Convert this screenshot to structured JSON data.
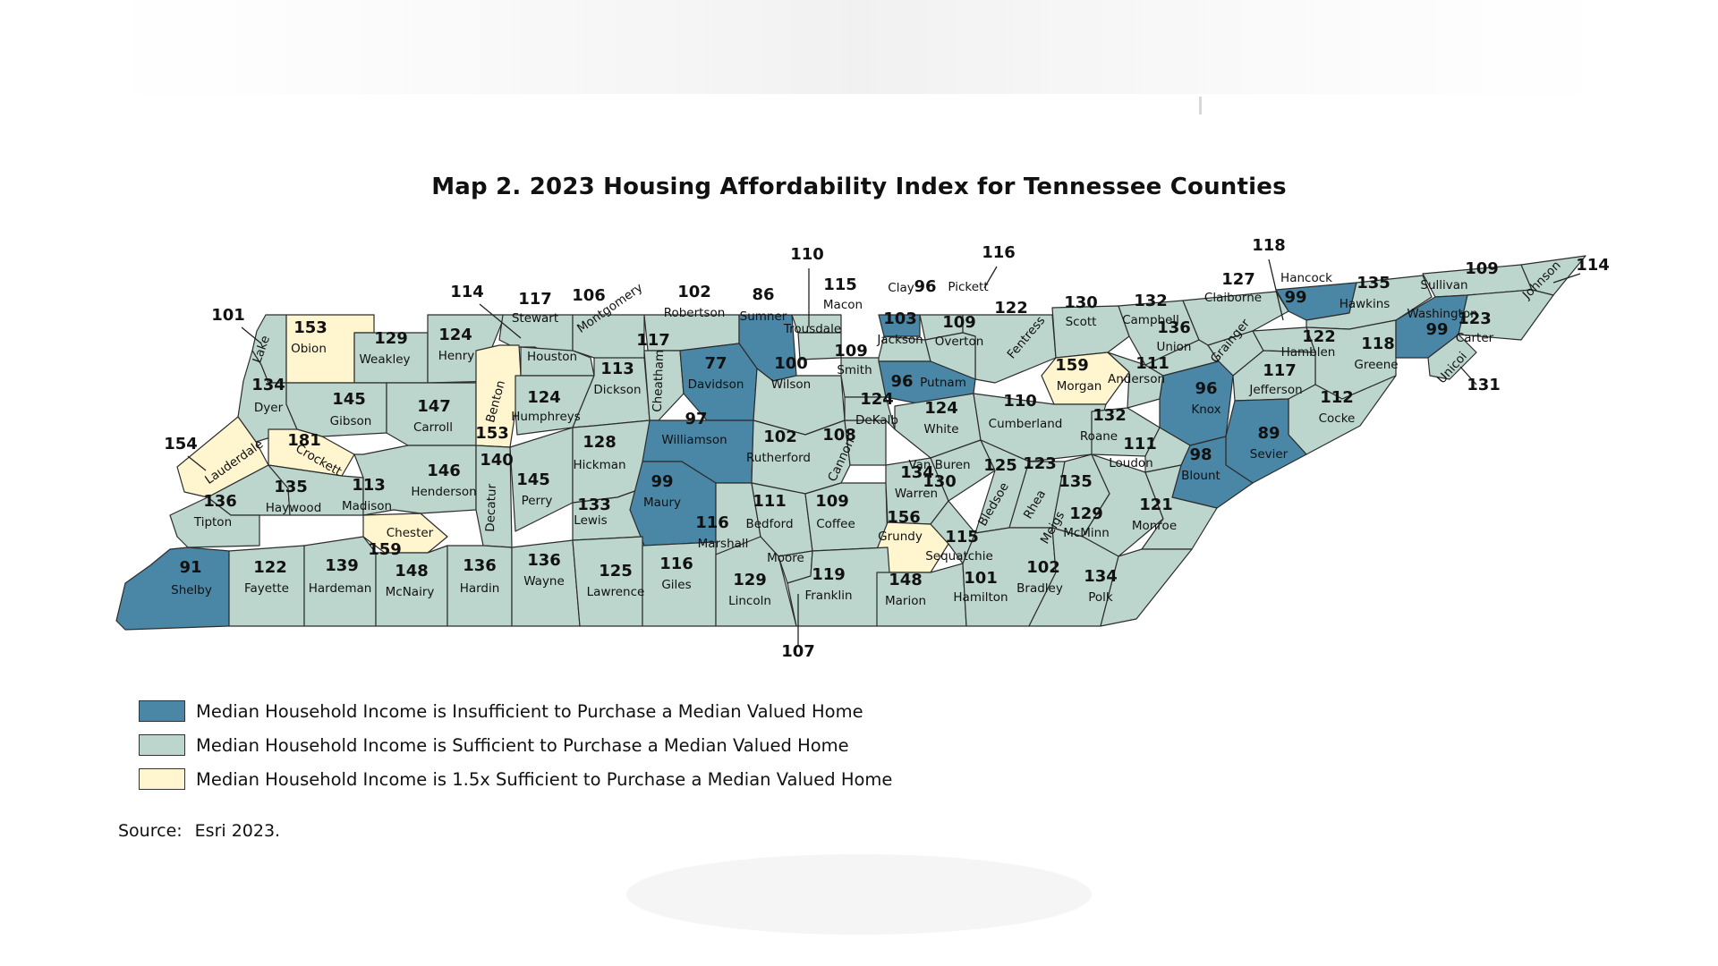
{
  "title": "Map 2.  2023 Housing Affordability Index for Tennessee Counties",
  "colors": {
    "insufficient": "#4a86a6",
    "sufficient": "#bcd6ce",
    "sufficient_15x": "#fff5cf",
    "border": "#2c2c2c"
  },
  "legend": [
    {
      "category": "insufficient",
      "label": "Median Household Income is Insufficient to Purchase a Median Valued Home"
    },
    {
      "category": "sufficient",
      "label": "Median Household Income is Sufficient to Purchase a Median Valued Home"
    },
    {
      "category": "sufficient_15x",
      "label": "Median Household Income is 1.5x Sufficient to Purchase a Median Valued Home"
    }
  ],
  "source": {
    "label": "Source:",
    "text": "Esri 2023."
  },
  "counties": [
    {
      "name": "Lake",
      "value": 101,
      "category": "sufficient"
    },
    {
      "name": "Obion",
      "value": 153,
      "category": "sufficient_15x"
    },
    {
      "name": "Weakley",
      "value": 129,
      "category": "sufficient"
    },
    {
      "name": "Henry",
      "value": 124,
      "category": "sufficient"
    },
    {
      "name": "Stewart",
      "value": 117,
      "category": "sufficient"
    },
    {
      "name": "Montgomery",
      "value": 106,
      "category": "sufficient"
    },
    {
      "name": "Robertson",
      "value": 102,
      "category": "sufficient"
    },
    {
      "name": "Sumner",
      "value": 86,
      "category": "insufficient"
    },
    {
      "name": "Macon",
      "value": 115,
      "category": "sufficient"
    },
    {
      "name": "Trousdale",
      "value": 110,
      "category": "sufficient"
    },
    {
      "name": "Clay",
      "value": 96,
      "category": "insufficient"
    },
    {
      "name": "Pickett",
      "value": 116,
      "category": "sufficient"
    },
    {
      "name": "Fentress",
      "value": 122,
      "category": "sufficient"
    },
    {
      "name": "Scott",
      "value": 130,
      "category": "sufficient"
    },
    {
      "name": "Campbell",
      "value": 132,
      "category": "sufficient"
    },
    {
      "name": "Claiborne",
      "value": 127,
      "category": "sufficient"
    },
    {
      "name": "Hancock",
      "value": 99,
      "category": "insufficient"
    },
    {
      "name": "Hawkins",
      "value": 135,
      "category": "sufficient"
    },
    {
      "name": "Sullivan",
      "value": 109,
      "category": "sufficient"
    },
    {
      "name": "Johnson",
      "value": 114,
      "category": "sufficient"
    },
    {
      "name": "Dyer",
      "value": 134,
      "category": "sufficient"
    },
    {
      "name": "Gibson",
      "value": 145,
      "category": "sufficient"
    },
    {
      "name": "Carroll",
      "value": 147,
      "category": "sufficient"
    },
    {
      "name": "Benton",
      "value": 153,
      "category": "sufficient_15x"
    },
    {
      "name": "Houston",
      "value": 114,
      "category": "sufficient"
    },
    {
      "name": "Humphreys",
      "value": 124,
      "category": "sufficient"
    },
    {
      "name": "Dickson",
      "value": 113,
      "category": "sufficient"
    },
    {
      "name": "Cheatham",
      "value": 117,
      "category": "sufficient"
    },
    {
      "name": "Davidson",
      "value": 77,
      "category": "insufficient"
    },
    {
      "name": "Wilson",
      "value": 100,
      "category": "sufficient"
    },
    {
      "name": "Smith",
      "value": 109,
      "category": "sufficient"
    },
    {
      "name": "Jackson",
      "value": 103,
      "category": "sufficient"
    },
    {
      "name": "Overton",
      "value": 109,
      "category": "sufficient"
    },
    {
      "name": "Putnam",
      "value": 96,
      "category": "insufficient"
    },
    {
      "name": "Morgan",
      "value": 159,
      "category": "sufficient_15x"
    },
    {
      "name": "Anderson",
      "value": 111,
      "category": "sufficient"
    },
    {
      "name": "Union",
      "value": 136,
      "category": "sufficient"
    },
    {
      "name": "Grainger",
      "value": 118,
      "category": "sufficient"
    },
    {
      "name": "Hamblen",
      "value": 122,
      "category": "sufficient"
    },
    {
      "name": "Greene",
      "value": 118,
      "category": "sufficient"
    },
    {
      "name": "Washington",
      "value": 99,
      "category": "insufficient"
    },
    {
      "name": "Carter",
      "value": 123,
      "category": "sufficient"
    },
    {
      "name": "Unicoi",
      "value": 131,
      "category": "sufficient"
    },
    {
      "name": "Lauderdale",
      "value": 154,
      "category": "sufficient_15x"
    },
    {
      "name": "Crockett",
      "value": 181,
      "category": "sufficient_15x"
    },
    {
      "name": "Haywood",
      "value": 135,
      "category": "sufficient"
    },
    {
      "name": "Madison",
      "value": 113,
      "category": "sufficient"
    },
    {
      "name": "Henderson",
      "value": 146,
      "category": "sufficient"
    },
    {
      "name": "Decatur",
      "value": 140,
      "category": "sufficient"
    },
    {
      "name": "Perry",
      "value": 145,
      "category": "sufficient"
    },
    {
      "name": "Hickman",
      "value": 128,
      "category": "sufficient"
    },
    {
      "name": "Williamson",
      "value": 97,
      "category": "insufficient"
    },
    {
      "name": "Rutherford",
      "value": 102,
      "category": "sufficient"
    },
    {
      "name": "Cannon",
      "value": 108,
      "category": "sufficient"
    },
    {
      "name": "DeKalb",
      "value": 124,
      "category": "sufficient"
    },
    {
      "name": "White",
      "value": 124,
      "category": "sufficient"
    },
    {
      "name": "Cumberland",
      "value": 110,
      "category": "sufficient"
    },
    {
      "name": "Roane",
      "value": 132,
      "category": "sufficient"
    },
    {
      "name": "Knox",
      "value": 96,
      "category": "insufficient"
    },
    {
      "name": "Jefferson",
      "value": 117,
      "category": "sufficient"
    },
    {
      "name": "Cocke",
      "value": 112,
      "category": "sufficient"
    },
    {
      "name": "Sevier",
      "value": 89,
      "category": "insufficient"
    },
    {
      "name": "Blount",
      "value": 98,
      "category": "insufficient"
    },
    {
      "name": "Loudon",
      "value": 111,
      "category": "sufficient"
    },
    {
      "name": "Tipton",
      "value": 136,
      "category": "sufficient"
    },
    {
      "name": "Chester",
      "value": 159,
      "category": "sufficient_15x"
    },
    {
      "name": "Lewis",
      "value": 133,
      "category": "sufficient"
    },
    {
      "name": "Maury",
      "value": 99,
      "category": "insufficient"
    },
    {
      "name": "Marshall",
      "value": 116,
      "category": "sufficient"
    },
    {
      "name": "Bedford",
      "value": 111,
      "category": "sufficient"
    },
    {
      "name": "Coffee",
      "value": 109,
      "category": "sufficient"
    },
    {
      "name": "Warren",
      "value": 134,
      "category": "sufficient"
    },
    {
      "name": "Van Buren",
      "value": 130,
      "category": "sufficient"
    },
    {
      "name": "Bledsoe",
      "value": 125,
      "category": "sufficient"
    },
    {
      "name": "Rhea",
      "value": 123,
      "category": "sufficient"
    },
    {
      "name": "Meigs",
      "value": 135,
      "category": "sufficient"
    },
    {
      "name": "McMinn",
      "value": 129,
      "category": "sufficient"
    },
    {
      "name": "Monroe",
      "value": 121,
      "category": "sufficient"
    },
    {
      "name": "Grundy",
      "value": 156,
      "category": "sufficient_15x"
    },
    {
      "name": "Sequatchie",
      "value": 115,
      "category": "sufficient"
    },
    {
      "name": "Shelby",
      "value": 91,
      "category": "insufficient"
    },
    {
      "name": "Fayette",
      "value": 122,
      "category": "sufficient"
    },
    {
      "name": "Hardeman",
      "value": 139,
      "category": "sufficient"
    },
    {
      "name": "McNairy",
      "value": 148,
      "category": "sufficient"
    },
    {
      "name": "Hardin",
      "value": 136,
      "category": "sufficient"
    },
    {
      "name": "Wayne",
      "value": 136,
      "category": "sufficient"
    },
    {
      "name": "Lawrence",
      "value": 125,
      "category": "sufficient"
    },
    {
      "name": "Giles",
      "value": 116,
      "category": "sufficient"
    },
    {
      "name": "Lincoln",
      "value": 129,
      "category": "sufficient"
    },
    {
      "name": "Moore",
      "value": 107,
      "category": "sufficient"
    },
    {
      "name": "Franklin",
      "value": 119,
      "category": "sufficient"
    },
    {
      "name": "Marion",
      "value": 148,
      "category": "sufficient"
    },
    {
      "name": "Hamilton",
      "value": 101,
      "category": "sufficient"
    },
    {
      "name": "Bradley",
      "value": 102,
      "category": "sufficient"
    },
    {
      "name": "Polk",
      "value": 134,
      "category": "sufficient"
    }
  ]
}
